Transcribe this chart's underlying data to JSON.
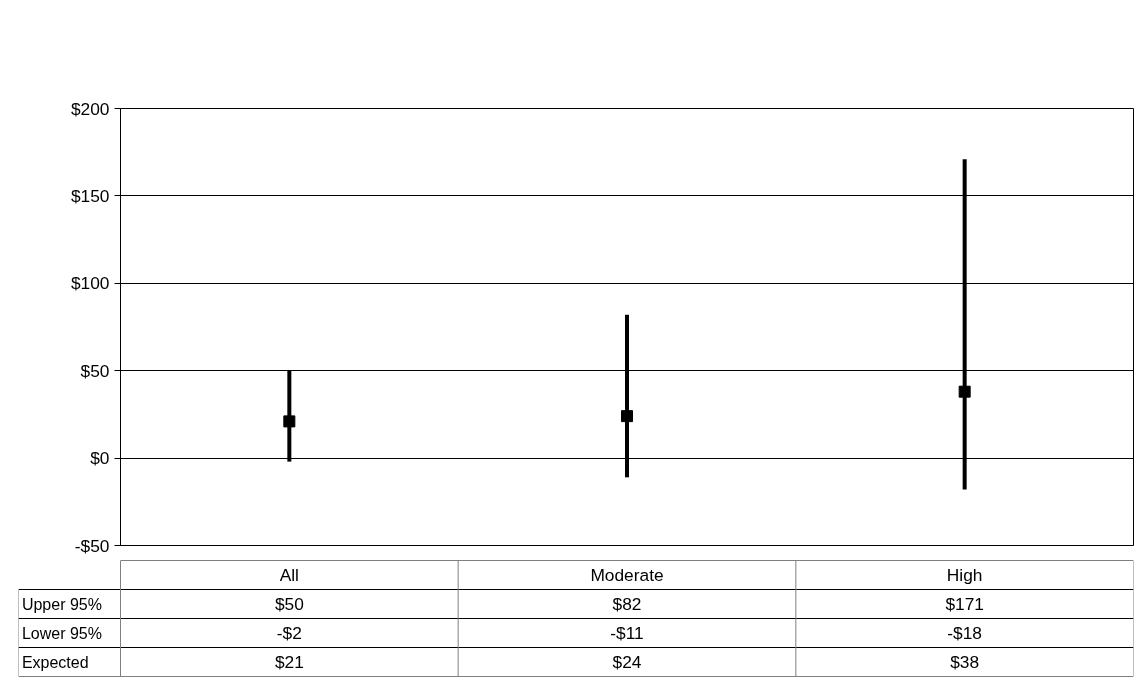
{
  "chart_data": {
    "type": "scatter",
    "categories": [
      "All",
      "Moderate",
      "High"
    ],
    "ylim": [
      -50,
      200
    ],
    "yticks": [
      {
        "value": -50,
        "label": "-$50"
      },
      {
        "value": 0,
        "label": "$0"
      },
      {
        "value": 50,
        "label": "$50"
      },
      {
        "value": 100,
        "label": "$100"
      },
      {
        "value": 150,
        "label": "$150"
      },
      {
        "value": 200,
        "label": "$200"
      }
    ],
    "grid": "y",
    "marker": "square",
    "series": [
      {
        "name": "Expected",
        "color": "#000000",
        "values": [
          21,
          24,
          38
        ],
        "errors": [
          [
            -2,
            50
          ],
          [
            -11,
            82
          ],
          [
            -18,
            171
          ]
        ],
        "value_labels": [
          "$21",
          "$24",
          "$38"
        ]
      }
    ],
    "annotations": [
      "Upper 95%",
      "$50",
      "$82",
      "$171",
      "Lower 95%",
      "-$2",
      "-$11",
      "-$18"
    ]
  }
}
